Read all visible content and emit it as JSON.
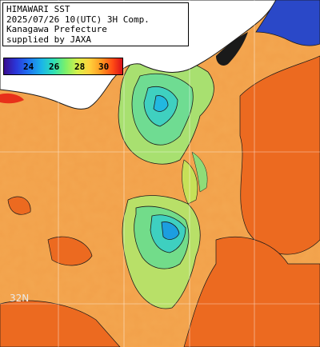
{
  "info": {
    "line1": "HIMAWARI SST",
    "line2": "2025/07/26 10(UTC) 3H Comp.",
    "line3": "Kanagawa Prefecture",
    "line4": "supplied by JAXA"
  },
  "legend": {
    "ticks": [
      "24",
      "26",
      "28",
      "30"
    ],
    "unit_min": 22,
    "unit_max": 31
  },
  "map": {
    "latitude_label": "32N",
    "colors": {
      "warm": "#f29a3a",
      "hot": "#ee6a1e",
      "cool": "#5fdc9a",
      "coolest": "#1cc3d8",
      "land": "#ffffff",
      "grid": "#ffffff"
    }
  }
}
